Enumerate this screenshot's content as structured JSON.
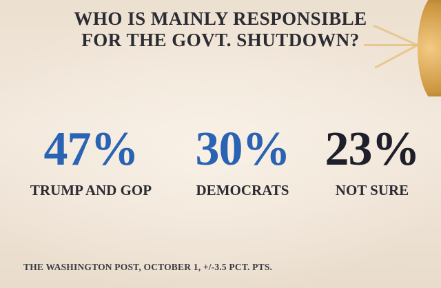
{
  "chart_data": {
    "type": "table",
    "title_lines": [
      "WHO IS MAINLY RESPONSIBLE",
      "FOR THE GOVT. SHUTDOWN?"
    ],
    "categories": [
      "TRUMP AND GOP",
      "DEMOCRATS",
      "NOT SURE"
    ],
    "values": [
      47,
      30,
      23
    ],
    "value_labels": [
      "47%",
      "30%",
      "23%"
    ],
    "colors": [
      "#2a63b3",
      "#2a63b3",
      "#1f1f2b"
    ],
    "source": "THE WASHINGTON POST, OCTOBER 1, +/-3.5 PCT. PTS."
  }
}
